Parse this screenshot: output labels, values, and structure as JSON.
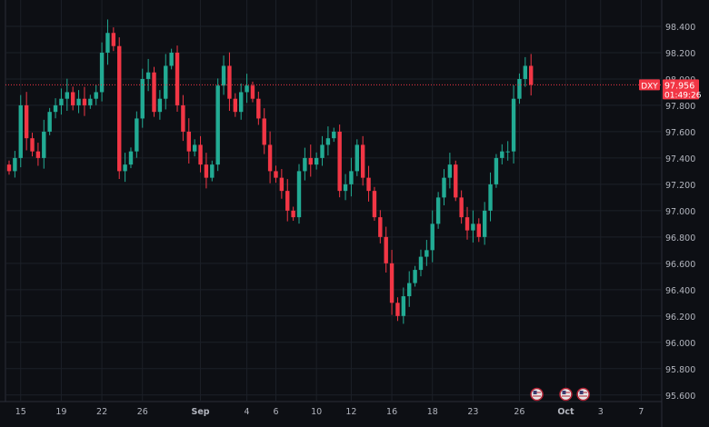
{
  "chart_data": {
    "type": "candlestick",
    "symbol": "DXY",
    "last_price": "97.956",
    "countdown": "01:49:26",
    "ylim": [
      95.55,
      98.6
    ],
    "y_ticks": [
      98.4,
      98.2,
      98.0,
      97.8,
      97.6,
      97.4,
      97.2,
      97.0,
      96.8,
      96.6,
      96.4,
      96.2,
      96.0,
      95.8,
      95.6
    ],
    "x_labels": [
      {
        "label": "15",
        "bar": 2
      },
      {
        "label": "19",
        "bar": 9
      },
      {
        "label": "22",
        "bar": 16
      },
      {
        "label": "26",
        "bar": 23
      },
      {
        "label": "Sep",
        "bar": 33
      },
      {
        "label": "4",
        "bar": 41
      },
      {
        "label": "6",
        "bar": 46
      },
      {
        "label": "10",
        "bar": 53
      },
      {
        "label": "12",
        "bar": 59
      },
      {
        "label": "16",
        "bar": 66
      },
      {
        "label": "18",
        "bar": 73
      },
      {
        "label": "23",
        "bar": 80
      },
      {
        "label": "26",
        "bar": 88
      },
      {
        "label": "Oct",
        "bar": 96
      },
      {
        "label": "3",
        "bar": 102
      },
      {
        "label": "7",
        "bar": 109
      }
    ],
    "events": [
      {
        "bar": 91,
        "name": "us-flag-icon"
      },
      {
        "bar": 96,
        "name": "us-flag-icon"
      },
      {
        "bar": 99,
        "name": "us-flag-icon"
      }
    ],
    "colors": {
      "up": "#22ab94",
      "down": "#f23645",
      "background": "#0d0f14",
      "grid": "#1c2028",
      "axis_text": "#b2b5be"
    },
    "close": [
      97.3,
      97.4,
      97.8,
      97.55,
      97.45,
      97.4,
      97.6,
      97.75,
      97.8,
      97.85,
      97.9,
      97.8,
      97.85,
      97.8,
      97.85,
      97.9,
      98.2,
      98.35,
      98.25,
      97.3,
      97.35,
      97.45,
      97.7,
      98.0,
      98.05,
      97.75,
      97.85,
      98.1,
      98.2,
      97.8,
      97.6,
      97.45,
      97.5,
      97.35,
      97.25,
      97.35,
      97.95,
      98.1,
      97.85,
      97.75,
      97.9,
      97.95,
      97.85,
      97.7,
      97.5,
      97.3,
      97.25,
      97.15,
      97.0,
      96.95,
      97.3,
      97.4,
      97.35,
      97.4,
      97.5,
      97.55,
      97.6,
      97.15,
      97.2,
      97.3,
      97.5,
      97.25,
      97.15,
      96.95,
      96.8,
      96.6,
      96.3,
      96.2,
      96.35,
      96.45,
      96.55,
      96.65,
      96.7,
      96.9,
      97.1,
      97.25,
      97.35,
      97.1,
      96.95,
      96.85,
      96.9,
      96.8,
      97.0,
      97.2,
      97.4,
      97.45,
      97.45,
      97.85,
      98.0,
      98.1,
      97.956
    ]
  }
}
